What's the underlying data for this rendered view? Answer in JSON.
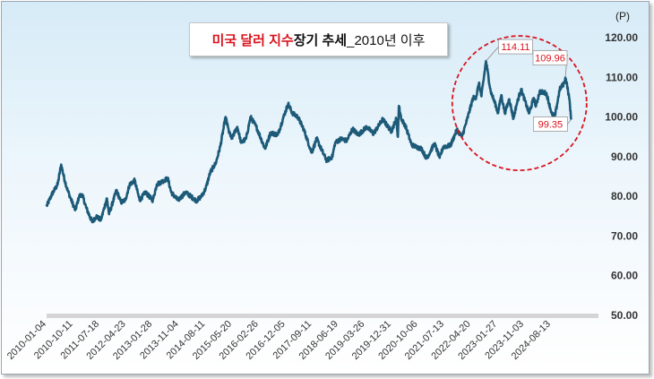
{
  "chart_data": {
    "type": "line",
    "title_parts": [
      "미국 달러 지수",
      " 장기 추세",
      "_2010년 이후"
    ],
    "unit_label": "(P)",
    "ylim": [
      50,
      120
    ],
    "y_ticks": [
      "120.00",
      "110.00",
      "100.00",
      "90.00",
      "80.00",
      "70.00",
      "60.00",
      "50.00"
    ],
    "x_ticks": [
      "2010-01-04",
      "2010-10-11",
      "2011-07-18",
      "2012-04-23",
      "2013-01-28",
      "2013-11-04",
      "2014-08-11",
      "2015-05-20",
      "2016-02-26",
      "2016-12-05",
      "2017-09-11",
      "2018-06-19",
      "2019-03-26",
      "2019-12-31",
      "2020-10-06",
      "2021-07-13",
      "2022-04-20",
      "2023-01-27",
      "2023-11-03",
      "2024-08-13"
    ],
    "x_range": [
      "2010-01-04",
      "2025-01-13"
    ],
    "series": [
      {
        "color": "#1c5a78",
        "points": [
          [
            "2010-01-04",
            77.5
          ],
          [
            "2010-03-01",
            80.5
          ],
          [
            "2010-05-01",
            83.0
          ],
          [
            "2010-06-07",
            88.0
          ],
          [
            "2010-07-15",
            84.0
          ],
          [
            "2010-08-15",
            81.5
          ],
          [
            "2010-09-15",
            79.5
          ],
          [
            "2010-11-04",
            76.5
          ],
          [
            "2010-12-15",
            80.0
          ],
          [
            "2011-01-15",
            80.5
          ],
          [
            "2011-03-01",
            77.0
          ],
          [
            "2011-05-02",
            73.5
          ],
          [
            "2011-06-15",
            75.0
          ],
          [
            "2011-08-01",
            74.0
          ],
          [
            "2011-10-04",
            79.5
          ],
          [
            "2011-10-27",
            75.5
          ],
          [
            "2012-01-13",
            81.5
          ],
          [
            "2012-03-01",
            78.5
          ],
          [
            "2012-04-15",
            79.0
          ],
          [
            "2012-06-01",
            83.0
          ],
          [
            "2012-07-24",
            84.0
          ],
          [
            "2012-09-14",
            79.0
          ],
          [
            "2012-11-15",
            81.0
          ],
          [
            "2013-02-01",
            79.0
          ],
          [
            "2013-03-15",
            83.0
          ],
          [
            "2013-07-09",
            84.5
          ],
          [
            "2013-08-15",
            81.0
          ],
          [
            "2013-10-25",
            79.0
          ],
          [
            "2014-01-15",
            81.0
          ],
          [
            "2014-05-08",
            78.9
          ],
          [
            "2014-07-01",
            80.0
          ],
          [
            "2014-08-15",
            82.0
          ],
          [
            "2014-10-01",
            86.0
          ],
          [
            "2014-12-01",
            88.5
          ],
          [
            "2015-01-15",
            92.5
          ],
          [
            "2015-03-13",
            100.0
          ],
          [
            "2015-04-15",
            96.5
          ],
          [
            "2015-05-15",
            94.5
          ],
          [
            "2015-07-15",
            97.5
          ],
          [
            "2015-08-24",
            93.5
          ],
          [
            "2015-10-15",
            94.5
          ],
          [
            "2015-12-02",
            100.0
          ],
          [
            "2016-02-01",
            97.5
          ],
          [
            "2016-05-03",
            92.0
          ],
          [
            "2016-07-01",
            96.0
          ],
          [
            "2016-09-15",
            95.5
          ],
          [
            "2016-11-15",
            100.0
          ],
          [
            "2017-01-03",
            103.3
          ],
          [
            "2017-02-15",
            101.0
          ],
          [
            "2017-04-15",
            100.0
          ],
          [
            "2017-06-15",
            97.0
          ],
          [
            "2017-09-08",
            91.0
          ],
          [
            "2017-11-01",
            94.5
          ],
          [
            "2018-01-15",
            90.5
          ],
          [
            "2018-02-15",
            89.0
          ],
          [
            "2018-04-15",
            90.0
          ],
          [
            "2018-05-15",
            93.5
          ],
          [
            "2018-07-15",
            94.5
          ],
          [
            "2018-09-15",
            94.0
          ],
          [
            "2018-11-15",
            97.0
          ],
          [
            "2019-01-15",
            95.5
          ],
          [
            "2019-04-15",
            97.5
          ],
          [
            "2019-06-25",
            95.8
          ],
          [
            "2019-09-30",
            99.4
          ],
          [
            "2019-12-31",
            96.4
          ],
          [
            "2020-02-20",
            99.5
          ],
          [
            "2020-03-09",
            95.0
          ],
          [
            "2020-03-19",
            102.8
          ],
          [
            "2020-04-15",
            99.5
          ],
          [
            "2020-06-01",
            97.5
          ],
          [
            "2020-07-31",
            93.0
          ],
          [
            "2020-09-15",
            92.5
          ],
          [
            "2020-11-15",
            92.0
          ],
          [
            "2021-01-06",
            89.5
          ],
          [
            "2021-03-31",
            93.3
          ],
          [
            "2021-05-25",
            89.7
          ],
          [
            "2021-07-01",
            92.5
          ],
          [
            "2021-09-15",
            92.8
          ],
          [
            "2021-11-24",
            96.8
          ],
          [
            "2022-01-15",
            95.0
          ],
          [
            "2022-03-07",
            99.0
          ],
          [
            "2022-05-13",
            104.8
          ],
          [
            "2022-06-15",
            105.0
          ],
          [
            "2022-07-14",
            108.5
          ],
          [
            "2022-08-10",
            105.2
          ],
          [
            "2022-09-27",
            114.11
          ],
          [
            "2022-11-15",
            106.5
          ],
          [
            "2022-12-31",
            103.5
          ],
          [
            "2023-02-01",
            101.0
          ],
          [
            "2023-03-08",
            105.5
          ],
          [
            "2023-04-14",
            101.0
          ],
          [
            "2023-05-31",
            104.5
          ],
          [
            "2023-07-14",
            99.6
          ],
          [
            "2023-08-15",
            103.0
          ],
          [
            "2023-10-03",
            107.0
          ],
          [
            "2023-12-27",
            100.9
          ],
          [
            "2024-02-14",
            104.8
          ],
          [
            "2024-03-08",
            102.7
          ],
          [
            "2024-04-16",
            106.4
          ],
          [
            "2024-06-26",
            106.0
          ],
          [
            "2024-08-27",
            100.5
          ],
          [
            "2024-09-27",
            100.4
          ],
          [
            "2024-11-15",
            107.0
          ],
          [
            "2024-12-31",
            108.5
          ],
          [
            "2025-01-13",
            109.96
          ],
          [
            "2025-02-01",
            108.0
          ],
          [
            "2025-03-01",
            103.8
          ],
          [
            "2025-03-15",
            99.35
          ]
        ]
      }
    ],
    "annotations": [
      {
        "label": "114.11",
        "date": "2022-09-27",
        "value": 114.11
      },
      {
        "label": "109.96",
        "date": "2025-01-13",
        "value": 109.96
      },
      {
        "label": "99.35",
        "date": "2025-03-15",
        "value": 99.35
      }
    ],
    "highlight": {
      "shape": "dashed-circle",
      "color": "#d9141e",
      "from": "2022-01-01",
      "to": "2025-03-15"
    },
    "grid": false,
    "legend": "none"
  }
}
